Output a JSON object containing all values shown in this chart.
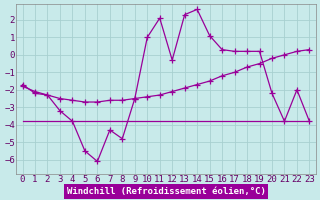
{
  "x": [
    0,
    1,
    2,
    3,
    4,
    5,
    6,
    7,
    8,
    9,
    10,
    11,
    12,
    13,
    14,
    15,
    16,
    17,
    18,
    19,
    20,
    21,
    22,
    23
  ],
  "line1": [
    -1.7,
    -2.2,
    -2.3,
    -3.2,
    -3.8,
    -5.5,
    -6.1,
    -4.3,
    -4.8,
    -2.5,
    1.0,
    2.1,
    -0.3,
    2.3,
    2.6,
    1.1,
    0.3,
    0.2,
    0.2,
    0.2,
    -2.2,
    -3.8,
    -2.0,
    -3.8
  ],
  "line2": [
    -1.8,
    -2.1,
    -2.3,
    -2.5,
    -2.6,
    -2.7,
    -2.7,
    -2.6,
    -2.6,
    -2.5,
    -2.4,
    -2.3,
    -2.1,
    -1.9,
    -1.7,
    -1.5,
    -1.2,
    -1.0,
    -0.7,
    -0.5,
    -0.2,
    0.0,
    0.2,
    0.3
  ],
  "line3": [
    -3.8,
    -3.8,
    -3.8,
    -3.8,
    -3.8,
    -3.8,
    -3.8,
    -3.8,
    -3.8,
    -3.8,
    -3.8,
    -3.8,
    -3.8,
    -3.8,
    -3.8,
    -3.8,
    -3.8,
    -3.8,
    -3.8,
    -3.8,
    -3.8,
    -3.8,
    -3.8,
    -3.8
  ],
  "color": "#990099",
  "bg_color": "#c8eaea",
  "grid_color": "#a8d0d0",
  "xlabel": "Windchill (Refroidissement éolien,°C)",
  "ylim": [
    -6.8,
    2.9
  ],
  "xlim": [
    -0.5,
    23.5
  ],
  "yticks": [
    2,
    1,
    0,
    -1,
    -2,
    -3,
    -4,
    -5,
    -6
  ],
  "xticks": [
    0,
    1,
    2,
    3,
    4,
    5,
    6,
    7,
    8,
    9,
    10,
    11,
    12,
    13,
    14,
    15,
    16,
    17,
    18,
    19,
    20,
    21,
    22,
    23
  ],
  "marker": "+",
  "markersize": 4,
  "linewidth": 0.9,
  "tick_fontsize": 6.5,
  "xlabel_fontsize": 6.5
}
